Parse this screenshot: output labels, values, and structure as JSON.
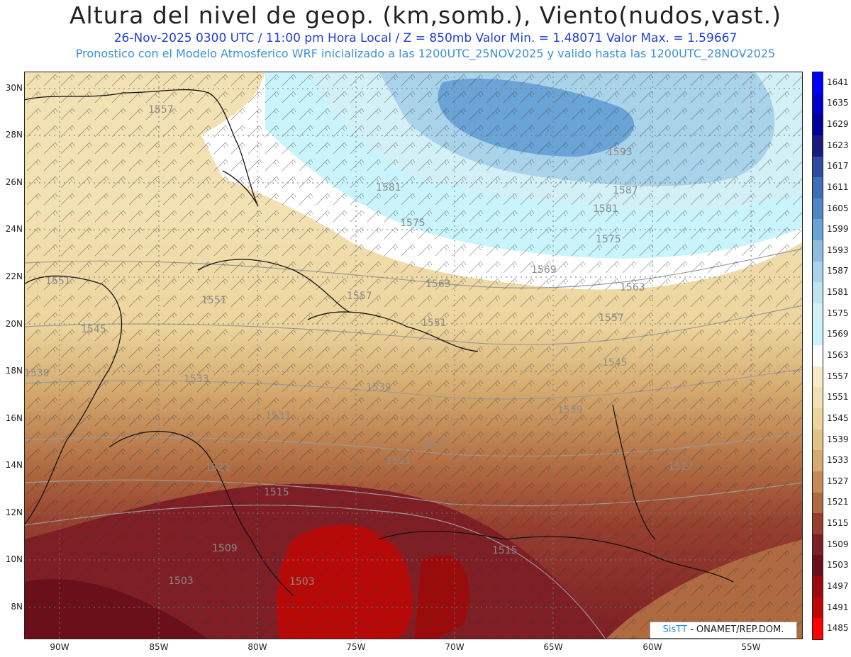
{
  "header": {
    "title": "Altura del nivel de geop. (km,somb.), Viento(nudos,vast.)",
    "subtitle_1": "26-Nov-2025 0300 UTC / 11:00 pm Hora Local / Z = 850mb   Valor Min. = 1.48071  Valor Max. = 1.59667",
    "subtitle_2": "Pronostico con el Modelo Atmosferico WRF inicializado a las 1200UTC_25NOV2025 y valido hasta las  1200UTC_28NOV2025"
  },
  "map": {
    "lat_labels": [
      "30N",
      "28N",
      "26N",
      "24N",
      "22N",
      "20N",
      "18N",
      "16N",
      "14N",
      "12N",
      "10N",
      "8N"
    ],
    "lon_labels": [
      "90W",
      "85W",
      "80W",
      "75W",
      "70W",
      "65W",
      "60W",
      "55W"
    ],
    "contour_labels": [
      "1557",
      "1581",
      "1587",
      "1593",
      "1581",
      "1575",
      "1575",
      "1569",
      "1563",
      "1563",
      "1557",
      "1557",
      "1551",
      "1551",
      "1551",
      "1545",
      "1545",
      "1539",
      "1539",
      "1539",
      "1533",
      "1533",
      "1527",
      "1527",
      "1521",
      "1521",
      "1515",
      "1515",
      "1509",
      "1503",
      "1503"
    ]
  },
  "colorbar": {
    "labels": [
      "1641",
      "1635",
      "1629",
      "1623",
      "1617",
      "1611",
      "1605",
      "1599",
      "1593",
      "1587",
      "1581",
      "1575",
      "1569",
      "1563",
      "1557",
      "1551",
      "1545",
      "1539",
      "1533",
      "1527",
      "1521",
      "1515",
      "1509",
      "1503",
      "1497",
      "1491",
      "1485"
    ],
    "colors": [
      "#0000ff",
      "#0000cc",
      "#000099",
      "#1a1a80",
      "#2f4aa0",
      "#3d6fb8",
      "#4d86c6",
      "#6aa3d6",
      "#8fbde2",
      "#a9d3ea",
      "#bfe3f0",
      "#d3f0f6",
      "#c9f4fb",
      "#ffffff",
      "#f6eac9",
      "#f2e1b2",
      "#ecd49c",
      "#e2c286",
      "#d5aa6f",
      "#c58a55",
      "#b06a40",
      "#963f2f",
      "#7f1e24",
      "#6b0f1a",
      "#9b0b0b",
      "#c00606",
      "#ff0000"
    ]
  },
  "credit": {
    "brand": "SisTT",
    "text": " - ONAMET/REP.DOM."
  }
}
